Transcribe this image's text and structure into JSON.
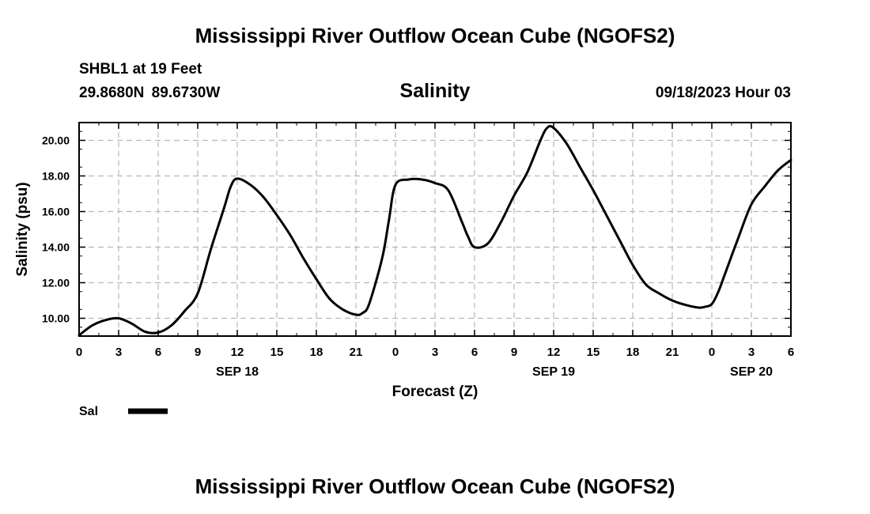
{
  "header": {
    "title": "Mississippi River Outflow Ocean Cube (NGOFS2)",
    "station": "SHBL1 at 19 Feet",
    "coordinates": "29.8680N  89.6730W",
    "variable": "Salinity",
    "datetime": "09/18/2023 Hour 03"
  },
  "footer": {
    "title": "Mississippi River Outflow Ocean Cube (NGOFS2)"
  },
  "chart_data": {
    "type": "line",
    "title": "Salinity",
    "xlabel": "Forecast (Z)",
    "ylabel": "Salinity (psu)",
    "x_unit": "hours from 09/18/2023 00Z",
    "xlim": [
      0,
      54
    ],
    "ylim": [
      9.0,
      21.0
    ],
    "grid": true,
    "x_ticks": [
      {
        "value": 0,
        "label": "0"
      },
      {
        "value": 3,
        "label": "3"
      },
      {
        "value": 6,
        "label": "6"
      },
      {
        "value": 9,
        "label": "9"
      },
      {
        "value": 12,
        "label": "12"
      },
      {
        "value": 15,
        "label": "15"
      },
      {
        "value": 18,
        "label": "18"
      },
      {
        "value": 21,
        "label": "21"
      },
      {
        "value": 24,
        "label": "0"
      },
      {
        "value": 27,
        "label": "3"
      },
      {
        "value": 30,
        "label": "6"
      },
      {
        "value": 33,
        "label": "9"
      },
      {
        "value": 36,
        "label": "12"
      },
      {
        "value": 39,
        "label": "15"
      },
      {
        "value": 42,
        "label": "18"
      },
      {
        "value": 45,
        "label": "21"
      },
      {
        "value": 48,
        "label": "0"
      },
      {
        "value": 51,
        "label": "3"
      },
      {
        "value": 54,
        "label": "6"
      }
    ],
    "date_labels": [
      {
        "value": 12,
        "label": "SEP 18"
      },
      {
        "value": 36,
        "label": "SEP 19"
      },
      {
        "value": 51,
        "label": "SEP 20"
      }
    ],
    "y_ticks": [
      {
        "value": 10,
        "label": "10.00"
      },
      {
        "value": 12,
        "label": "12.00"
      },
      {
        "value": 14,
        "label": "14.00"
      },
      {
        "value": 16,
        "label": "16.00"
      },
      {
        "value": 18,
        "label": "18.00"
      },
      {
        "value": 20,
        "label": "20.00"
      }
    ],
    "legend": {
      "position": "bottom-left",
      "label": "Sal",
      "color": "#000000"
    },
    "series": [
      {
        "name": "Sal",
        "color": "#000000",
        "x": [
          0,
          1,
          2,
          3,
          4,
          5,
          6,
          7,
          8,
          9,
          10,
          11,
          11.5,
          12,
          13,
          14,
          15,
          16,
          17,
          18,
          19,
          20,
          21,
          21.5,
          22,
          23,
          23.5,
          24,
          25,
          26,
          27,
          28,
          29,
          29.5,
          30,
          31,
          32,
          33,
          34,
          35,
          35.5,
          36,
          37,
          38,
          39,
          40,
          41,
          42,
          43,
          44,
          45,
          46,
          47,
          47.5,
          48,
          48.5,
          49,
          50,
          51,
          52,
          53,
          54
        ],
        "y": [
          9.05,
          9.6,
          9.9,
          10.0,
          9.7,
          9.25,
          9.2,
          9.6,
          10.4,
          11.4,
          13.9,
          16.2,
          17.4,
          17.85,
          17.5,
          16.8,
          15.8,
          14.7,
          13.4,
          12.2,
          11.1,
          10.5,
          10.2,
          10.3,
          10.8,
          13.4,
          15.5,
          17.5,
          17.8,
          17.8,
          17.6,
          17.2,
          15.5,
          14.6,
          14.0,
          14.2,
          15.4,
          16.9,
          18.2,
          20.0,
          20.7,
          20.7,
          19.8,
          18.5,
          17.2,
          15.8,
          14.4,
          13.0,
          11.9,
          11.4,
          11.0,
          10.75,
          10.6,
          10.65,
          10.8,
          11.5,
          12.5,
          14.5,
          16.4,
          17.4,
          18.3,
          18.9
        ]
      }
    ]
  }
}
